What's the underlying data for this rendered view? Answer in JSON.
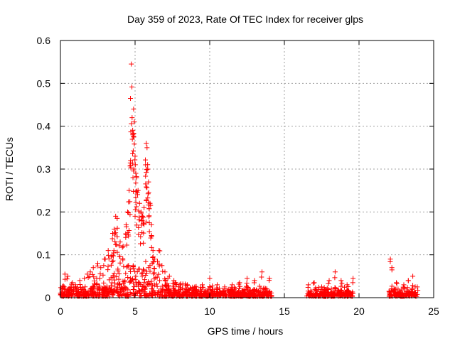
{
  "chart_data": {
    "type": "scatter",
    "title": "Day 359 of 2023, Rate Of TEC Index for receiver glps",
    "xlabel": "GPS time / hours",
    "ylabel": "ROTI / TECUs",
    "xlim": [
      0,
      25
    ],
    "ylim": [
      0,
      0.6
    ],
    "xticks": [
      "0",
      "5",
      "10",
      "15",
      "20",
      "25"
    ],
    "yticks": [
      "0",
      "0.1",
      "0.2",
      "0.3",
      "0.4",
      "0.5",
      "0.6"
    ],
    "grid": true,
    "legend": "none",
    "marker": "+",
    "color": "#ff0000",
    "coverage_segments": [
      [
        0,
        14.2
      ],
      [
        16.5,
        19.6
      ],
      [
        22.0,
        23.9
      ]
    ],
    "points": [
      [
        0.1,
        0.022
      ],
      [
        0.3,
        0.055
      ],
      [
        0.5,
        0.05
      ],
      [
        0.8,
        0.035
      ],
      [
        1.0,
        0.03
      ],
      [
        1.3,
        0.04
      ],
      [
        1.6,
        0.045
      ],
      [
        1.8,
        0.055
      ],
      [
        2.0,
        0.06
      ],
      [
        2.2,
        0.07
      ],
      [
        2.5,
        0.08
      ],
      [
        2.7,
        0.07
      ],
      [
        2.9,
        0.075
      ],
      [
        3.0,
        0.09
      ],
      [
        3.2,
        0.11
      ],
      [
        3.4,
        0.095
      ],
      [
        3.5,
        0.15
      ],
      [
        3.6,
        0.16
      ],
      [
        3.7,
        0.19
      ],
      [
        3.8,
        0.185
      ],
      [
        4.0,
        0.13
      ],
      [
        4.2,
        0.12
      ],
      [
        4.4,
        0.17
      ],
      [
        4.5,
        0.2
      ],
      [
        4.6,
        0.25
      ],
      [
        4.7,
        0.32
      ],
      [
        4.75,
        0.545
      ],
      [
        4.8,
        0.42
      ],
      [
        4.85,
        0.38
      ],
      [
        4.9,
        0.44
      ],
      [
        4.95,
        0.41
      ],
      [
        5.0,
        0.33
      ],
      [
        5.05,
        0.29
      ],
      [
        5.1,
        0.28
      ],
      [
        5.2,
        0.25
      ],
      [
        5.3,
        0.22
      ],
      [
        5.4,
        0.2
      ],
      [
        5.5,
        0.19
      ],
      [
        5.6,
        0.21
      ],
      [
        5.7,
        0.31
      ],
      [
        5.75,
        0.36
      ],
      [
        5.8,
        0.35
      ],
      [
        5.85,
        0.3
      ],
      [
        5.9,
        0.27
      ],
      [
        6.0,
        0.22
      ],
      [
        6.1,
        0.17
      ],
      [
        6.2,
        0.11
      ],
      [
        6.3,
        0.09
      ],
      [
        6.5,
        0.085
      ],
      [
        6.6,
        0.11
      ],
      [
        6.8,
        0.075
      ],
      [
        7.0,
        0.06
      ],
      [
        7.3,
        0.05
      ],
      [
        7.6,
        0.04
      ],
      [
        8.0,
        0.03
      ],
      [
        8.5,
        0.03
      ],
      [
        9.0,
        0.025
      ],
      [
        9.5,
        0.03
      ],
      [
        10.0,
        0.045
      ],
      [
        10.5,
        0.03
      ],
      [
        11.0,
        0.025
      ],
      [
        11.5,
        0.03
      ],
      [
        12.0,
        0.035
      ],
      [
        12.5,
        0.045
      ],
      [
        13.0,
        0.04
      ],
      [
        13.5,
        0.06
      ],
      [
        14.0,
        0.045
      ],
      [
        16.6,
        0.03
      ],
      [
        17.0,
        0.035
      ],
      [
        17.5,
        0.025
      ],
      [
        18.0,
        0.04
      ],
      [
        18.4,
        0.06
      ],
      [
        18.8,
        0.04
      ],
      [
        19.2,
        0.03
      ],
      [
        19.6,
        0.045
      ],
      [
        22.1,
        0.09
      ],
      [
        22.2,
        0.07
      ],
      [
        22.5,
        0.035
      ],
      [
        23.0,
        0.03
      ],
      [
        23.3,
        0.04
      ],
      [
        23.6,
        0.05
      ],
      [
        23.9,
        0.025
      ]
    ]
  }
}
